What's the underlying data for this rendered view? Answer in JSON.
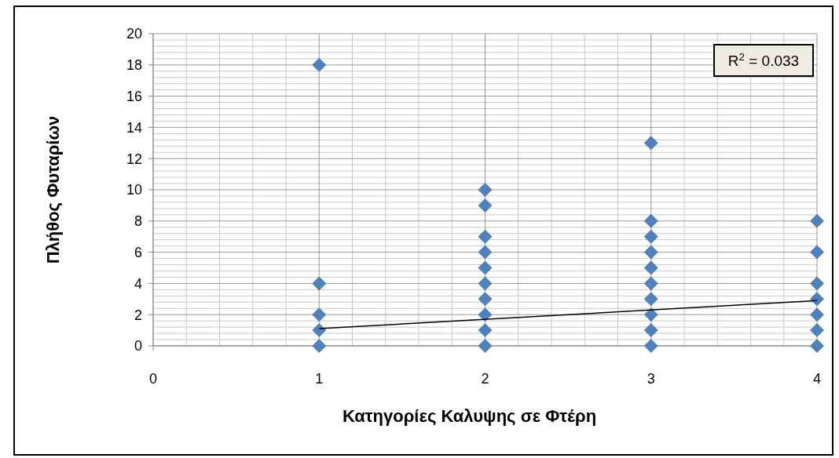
{
  "chart_data": {
    "type": "scatter",
    "xlabel": "Κατηγορίες  Καλυψης σε Φτέρη",
    "ylabel": "Πλήθος Φυταρίων",
    "xlim": [
      0,
      4
    ],
    "xticks": [
      0,
      1,
      2,
      3,
      4
    ],
    "ylim": [
      0,
      20
    ],
    "yticks": [
      0,
      2,
      4,
      6,
      8,
      10,
      12,
      14,
      16,
      18,
      20
    ],
    "grid": true,
    "series": [
      {
        "marker": "diamond",
        "color": "#4f81bd",
        "x": [
          1,
          1,
          1,
          1,
          1,
          2,
          2,
          2,
          2,
          2,
          2,
          2,
          2,
          2,
          2,
          3,
          3,
          3,
          3,
          3,
          3,
          3,
          3,
          3,
          3,
          4,
          4,
          4,
          4,
          4,
          4,
          4
        ],
        "values": [
          0,
          1,
          2,
          4,
          18,
          0,
          1,
          2,
          3,
          4,
          5,
          6,
          7,
          9,
          10,
          0,
          1,
          2,
          3,
          4,
          5,
          6,
          7,
          8,
          13,
          0,
          1,
          2,
          3,
          4,
          6,
          8
        ]
      },
      {
        "type": "line",
        "color": "#000000",
        "x": [
          1,
          4
        ],
        "values": [
          1.1,
          2.9
        ]
      }
    ],
    "annotations": [
      "R$^{2}$ = 0.033"
    ]
  }
}
